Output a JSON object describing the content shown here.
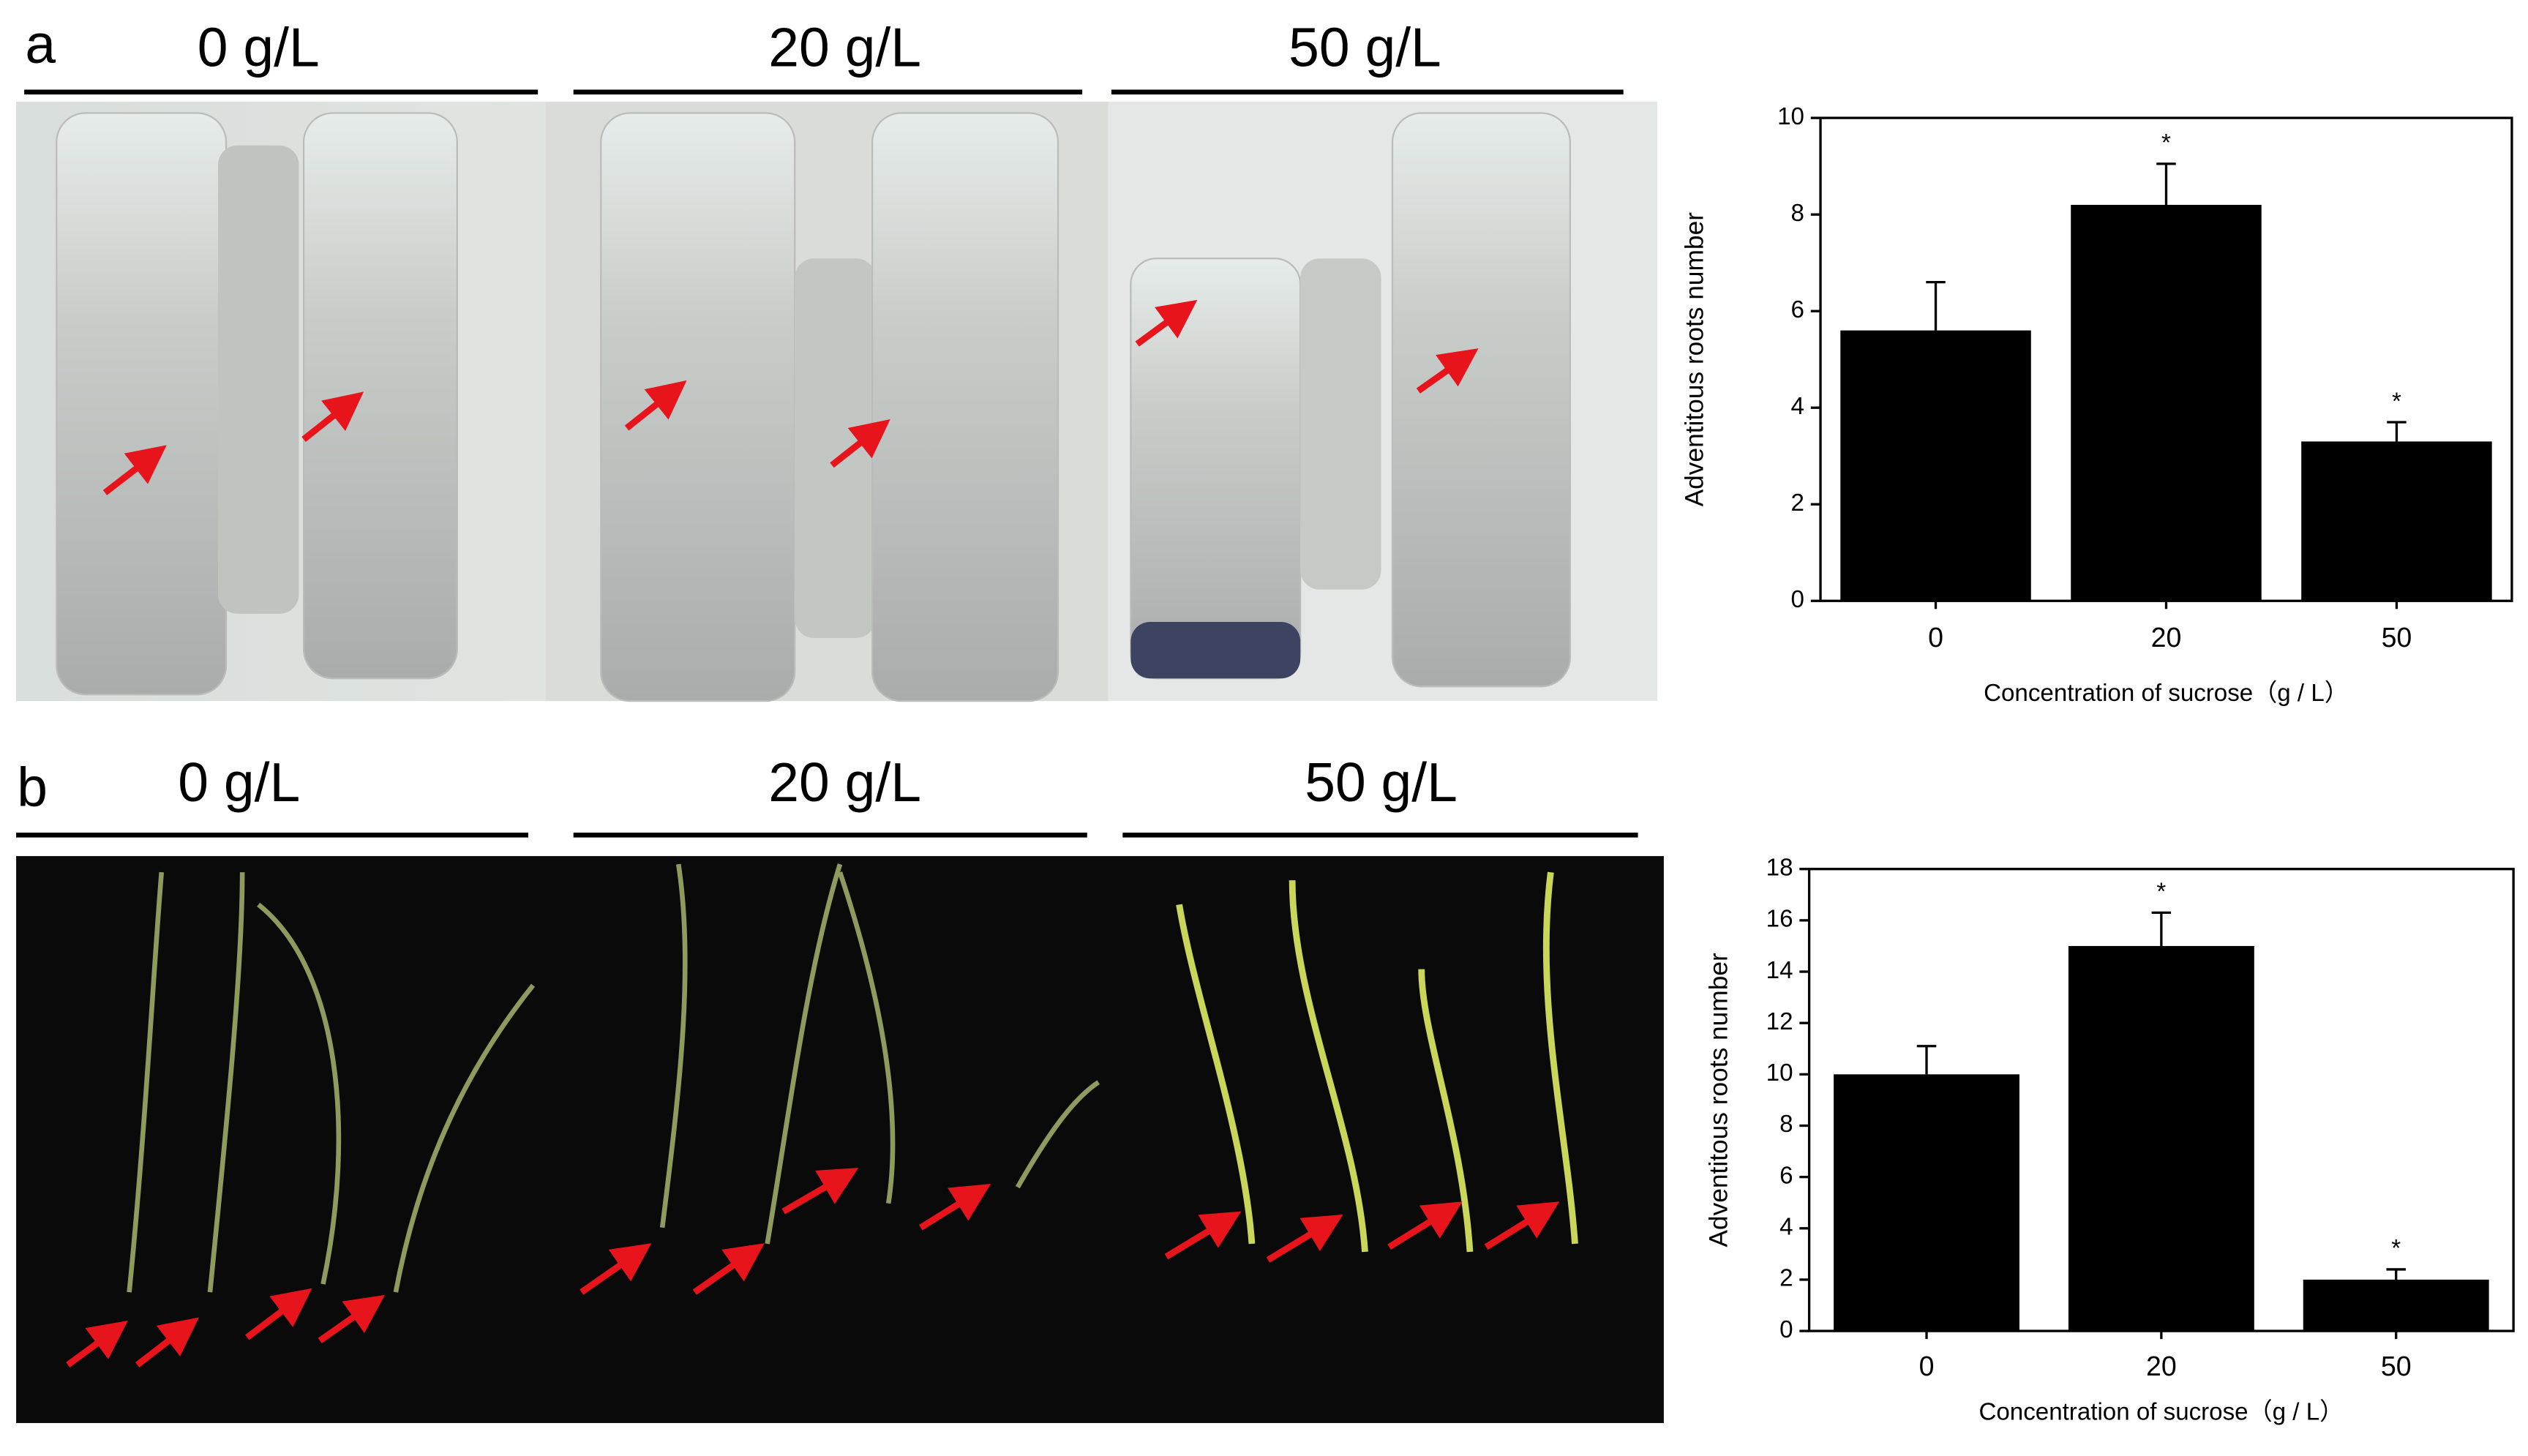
{
  "panels": [
    {
      "label": "a",
      "groups": [
        "0 g/L",
        "20 g/L",
        "50 g/L"
      ]
    },
    {
      "label": "b",
      "groups": [
        "0 g/L",
        "20 g/L",
        "50 g/L"
      ]
    }
  ],
  "chart_data": [
    {
      "type": "bar",
      "categories": [
        "0",
        "20",
        "50"
      ],
      "values": [
        5.6,
        8.2,
        3.3
      ],
      "errors": [
        1.0,
        0.85,
        0.4
      ],
      "significance": [
        null,
        "*",
        "*"
      ],
      "color": "#000000",
      "xlabel": "Concentration of sucrose（g / L）",
      "ylabel": "Adventitous roots number",
      "ylim": [
        0,
        10
      ],
      "yticks": [
        0,
        2,
        4,
        6,
        8,
        10
      ],
      "grid": false
    },
    {
      "type": "bar",
      "categories": [
        "0",
        "20",
        "50"
      ],
      "values": [
        10,
        15,
        2
      ],
      "errors": [
        1.1,
        1.3,
        0.4
      ],
      "significance": [
        null,
        "*",
        "*"
      ],
      "color": "#000000",
      "xlabel": "Concentration of sucrose（g / L）",
      "ylabel": "Adventitous roots number",
      "ylim": [
        0,
        18
      ],
      "yticks": [
        0,
        2,
        4,
        6,
        8,
        10,
        12,
        14,
        16,
        18
      ],
      "grid": false
    }
  ]
}
